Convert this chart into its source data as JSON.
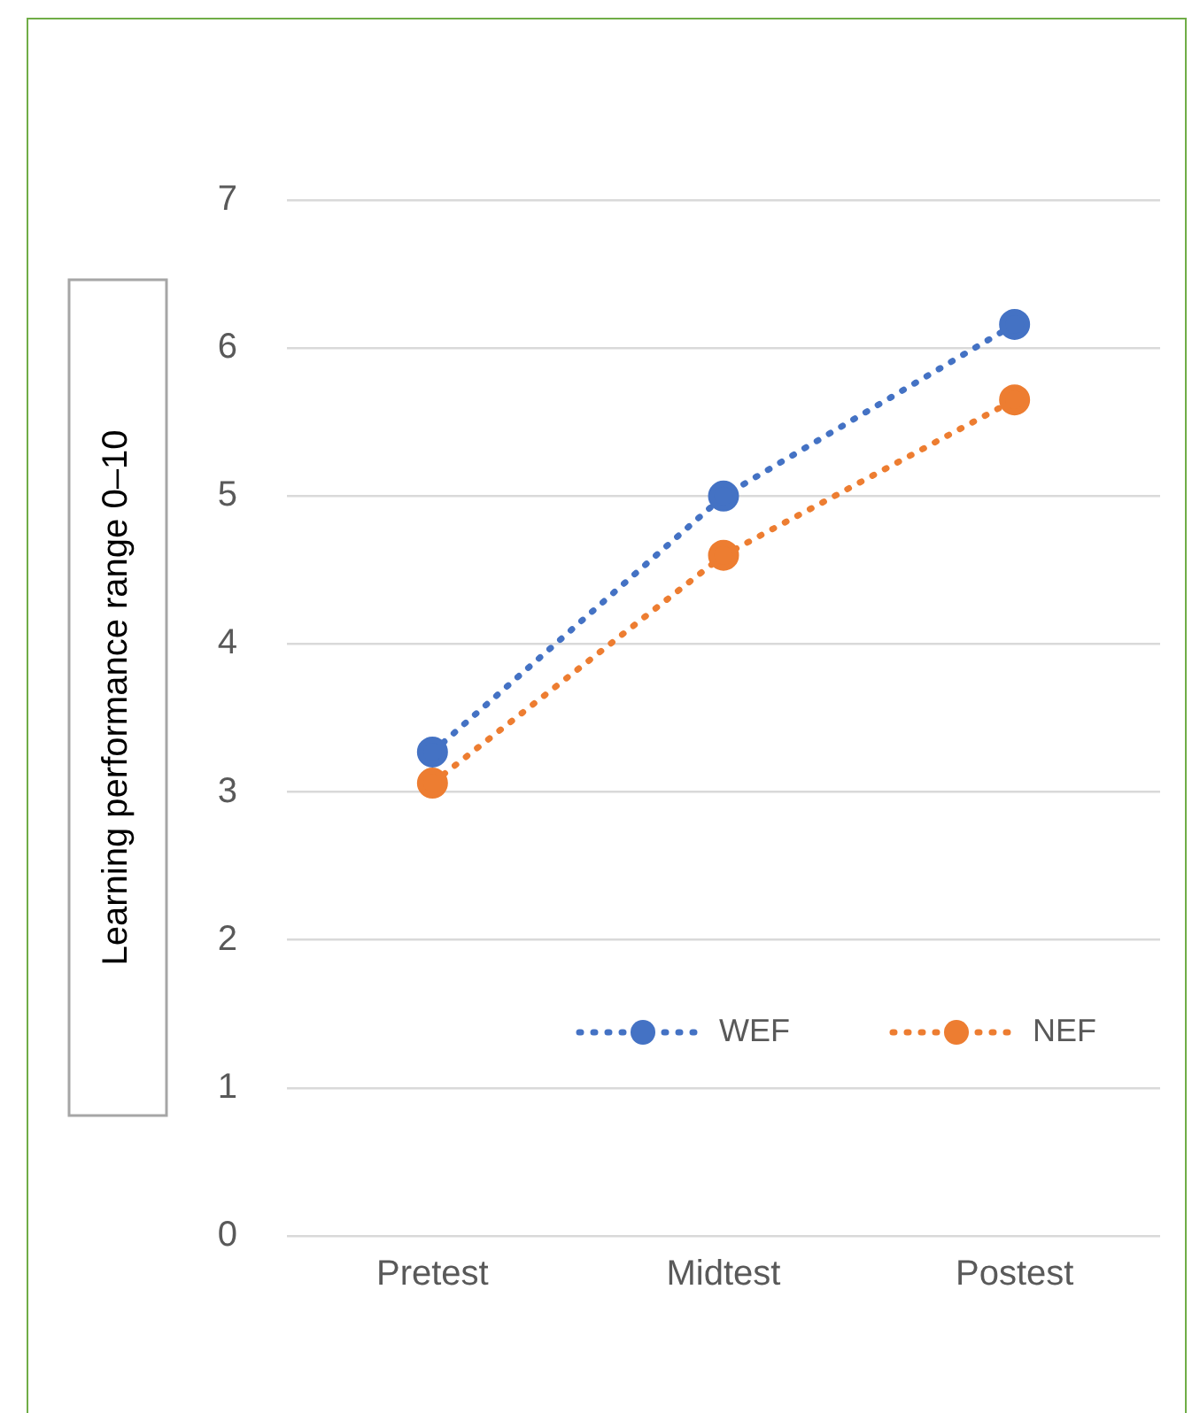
{
  "chart_data": {
    "type": "line",
    "ylabel": "Learning performance range 0–10",
    "categories": [
      "Pretest",
      "Midtest",
      "Postest"
    ],
    "series": [
      {
        "name": "WEF",
        "color": "#4472c4",
        "values": [
          3.27,
          5.0,
          6.16
        ]
      },
      {
        "name": "NEF",
        "color": "#ed7d31",
        "values": [
          3.06,
          4.6,
          5.65
        ]
      }
    ],
    "ylim": [
      0,
      7
    ],
    "yticks": [
      0,
      1,
      2,
      3,
      4,
      5,
      6,
      7
    ],
    "grid": "y",
    "legend": "bottom right",
    "marker": "circle",
    "line_style": "dotted"
  }
}
